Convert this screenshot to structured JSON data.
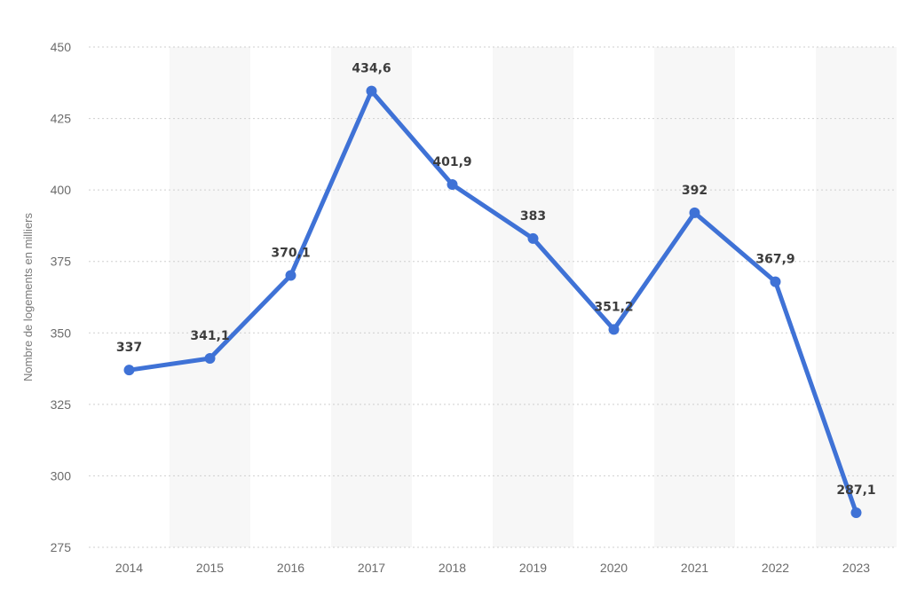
{
  "chart_data": {
    "type": "line",
    "title": "",
    "xlabel": "",
    "ylabel": "Nombre de logements en milliers",
    "categories": [
      "2014",
      "2015",
      "2016",
      "2017",
      "2018",
      "2019",
      "2020",
      "2021",
      "2022",
      "2023"
    ],
    "series": [
      {
        "values": [
          337,
          341.1,
          370.1,
          434.6,
          401.9,
          383,
          351.2,
          392,
          367.9,
          287.1
        ],
        "labels": [
          "337",
          "341,1",
          "370,1",
          "434,6",
          "401,9",
          "383",
          "351,2",
          "392",
          "367,9",
          "287,1"
        ]
      }
    ],
    "ylim": [
      275,
      450
    ],
    "yticks": [
      275,
      300,
      325,
      350,
      375,
      400,
      425,
      450
    ],
    "grid": true,
    "grid_style": "dotted",
    "alternating_column_bands": true,
    "line_color": "#3f72d6",
    "band_color": "#f7f7f7",
    "grid_color": "#cfcfcf",
    "label_color": "#3d3d3d"
  }
}
